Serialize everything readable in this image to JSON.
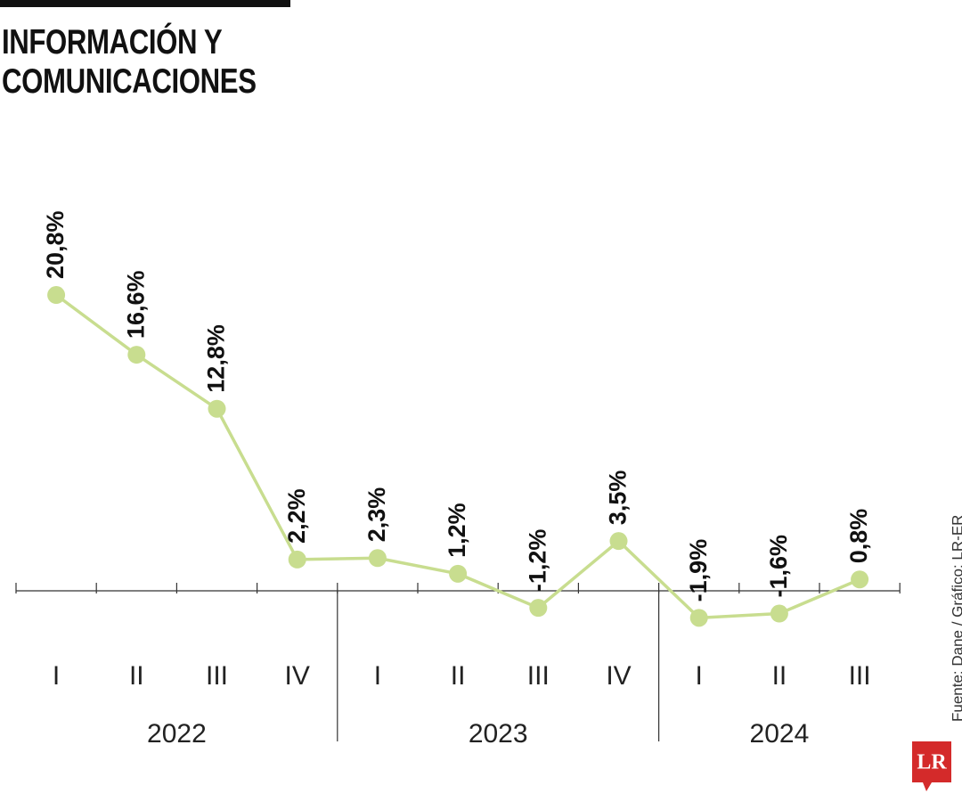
{
  "chart_data": {
    "type": "line",
    "title": "INFORMACIÓN Y COMUNICACIONES",
    "categories": [
      "I",
      "II",
      "III",
      "IV",
      "I",
      "II",
      "III",
      "IV",
      "I",
      "II",
      "III"
    ],
    "groups": [
      "2022",
      "2023",
      "2024"
    ],
    "series": [
      {
        "color": "#c8dd8f",
        "values": [
          20.8,
          16.6,
          12.8,
          2.2,
          2.3,
          1.2,
          -1.2,
          3.5,
          -1.9,
          -1.6,
          0.8
        ],
        "value_labels": [
          "20,8%",
          "16,6%",
          "12,8%",
          "2,2%",
          "2,3%",
          "1,2%",
          "-1,2%",
          "3,5%",
          "-1,9%",
          "-1,6%",
          "0,8%"
        ]
      }
    ],
    "source": "Fuente: Dane / Gráfico: LR-ER",
    "logo": "LR"
  }
}
